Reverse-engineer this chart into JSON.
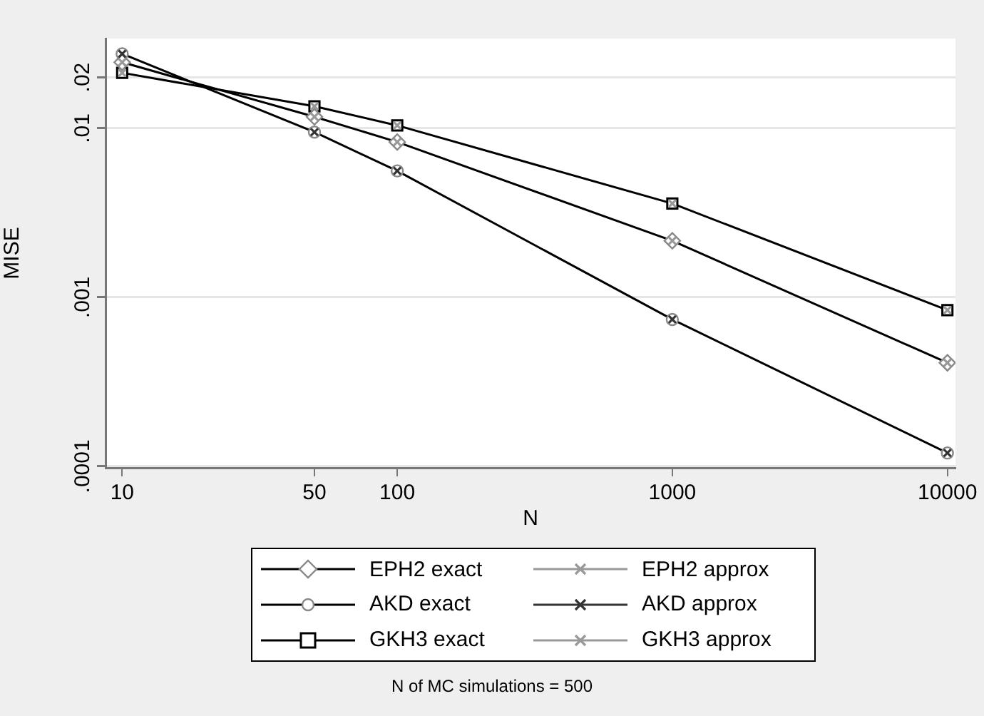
{
  "chart_data": {
    "type": "line",
    "xlabel": "N",
    "ylabel": "MISE",
    "annotations": [
      "N of MC simulations = 500"
    ],
    "x": [
      10,
      50,
      100,
      1000,
      10000
    ],
    "log": "xy",
    "xlim": [
      8.7,
      10700
    ],
    "ylim": [
      9.8e-05,
      0.034
    ],
    "xticks": [
      10,
      50,
      100,
      1000,
      10000
    ],
    "yticks": [
      {
        "value": 0.0001,
        "label": ".0001"
      },
      {
        "value": 0.001,
        "label": ".001"
      },
      {
        "value": 0.01,
        "label": ".01"
      },
      {
        "value": 0.02,
        "label": ".02"
      }
    ],
    "grid": "y",
    "legend": "bottom",
    "series": [
      {
        "name": "EPH2 exact",
        "color": "#888888",
        "marker": "diamond",
        "values": [
          0.0246,
          0.0117,
          0.0083,
          0.00216,
          0.00041
        ]
      },
      {
        "name": "AKD exact",
        "color": "#888888",
        "marker": "circle",
        "values": [
          0.0276,
          0.0095,
          0.0056,
          0.00074,
          0.00012
        ]
      },
      {
        "name": "GKH3 exact",
        "color": "#000000",
        "marker": "square",
        "values": [
          0.0213,
          0.0135,
          0.0104,
          0.00359,
          0.00084
        ]
      },
      {
        "name": "EPH2 approx",
        "type": "scatter",
        "color": "#999999",
        "marker": "cross",
        "values": [
          0.0246,
          0.0117,
          0.0083,
          0.00216,
          0.00041
        ]
      },
      {
        "name": "AKD approx",
        "type": "scatter",
        "color": "#333333",
        "marker": "cross",
        "values": [
          0.0276,
          0.0095,
          0.0056,
          0.00074,
          0.00012
        ]
      },
      {
        "name": "GKH3 approx",
        "type": "scatter",
        "color": "#999999",
        "marker": "cross",
        "values": [
          0.0213,
          0.0135,
          0.0104,
          0.00359,
          0.00084
        ]
      }
    ]
  }
}
